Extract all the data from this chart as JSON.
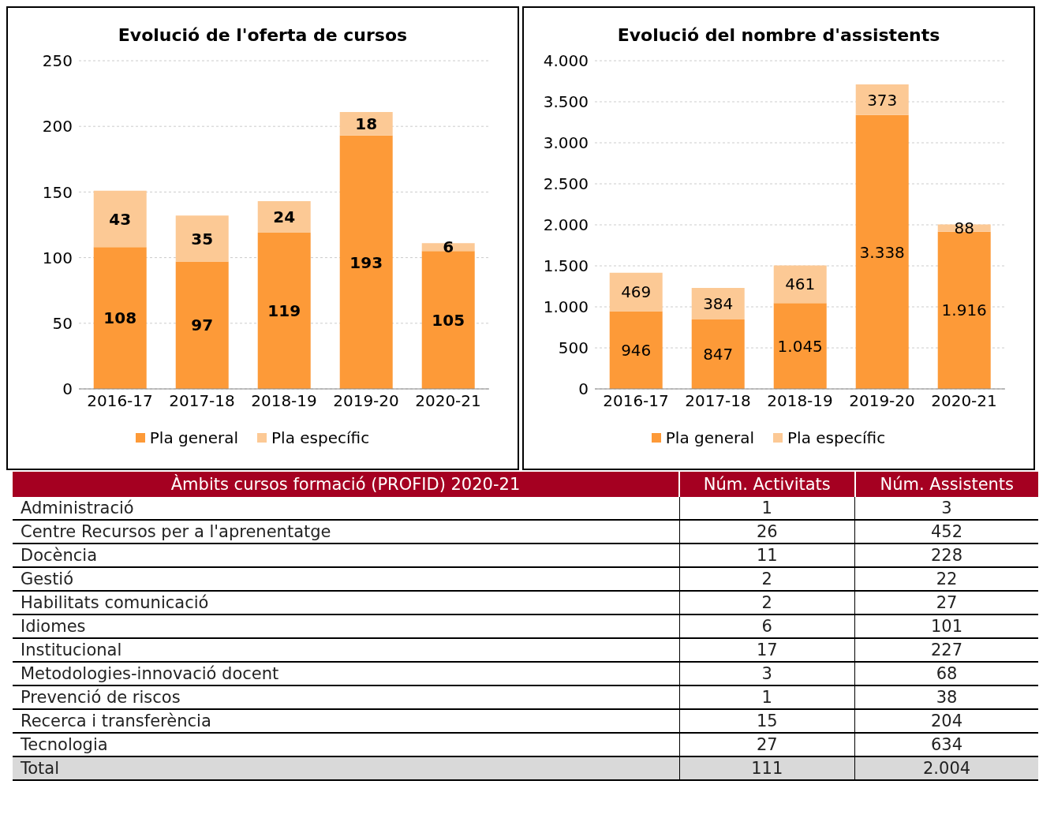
{
  "chart_data": [
    {
      "type": "bar",
      "title": "Evolució de l'oferta de cursos",
      "categories": [
        "2016-17",
        "2017-18",
        "2018-19",
        "2019-20",
        "2020-21"
      ],
      "stacked": true,
      "series": [
        {
          "name": "Pla general",
          "color": "#fd9a38",
          "values": [
            108,
            97,
            119,
            193,
            105
          ]
        },
        {
          "name": "Pla específic",
          "color": "#fcc995",
          "values": [
            43,
            35,
            24,
            18,
            6
          ]
        }
      ],
      "ylim": [
        0,
        250
      ],
      "yticks": [
        0,
        50,
        100,
        150,
        200,
        250
      ],
      "grid": "y",
      "legend": "bottom",
      "data_labels": true
    },
    {
      "type": "bar",
      "title": "Evolució del nombre d'assistents",
      "categories": [
        "2016-17",
        "2017-18",
        "2018-19",
        "2019-20",
        "2020-21"
      ],
      "stacked": true,
      "series": [
        {
          "name": "Pla general",
          "color": "#fd9a38",
          "values": [
            946,
            847,
            1045,
            3338,
            1916
          ],
          "value_labels": [
            "946",
            "847",
            "1.045",
            "3.338",
            "1.916"
          ]
        },
        {
          "name": "Pla específic",
          "color": "#fcc995",
          "values": [
            469,
            384,
            461,
            373,
            88
          ],
          "value_labels": [
            "469",
            "384",
            "461",
            "373",
            "88"
          ]
        }
      ],
      "ylim": [
        0,
        4000
      ],
      "yticks": [
        0,
        {
          "value": 500,
          "label": "500"
        },
        {
          "value": 1000,
          "label": "1.000"
        },
        {
          "value": 1500,
          "label": "1.500"
        },
        {
          "value": 2000,
          "label": "2.000"
        },
        {
          "value": 2500,
          "label": "2.500"
        },
        {
          "value": 3000,
          "label": "3.000"
        },
        {
          "value": 3500,
          "label": "3.500"
        },
        {
          "value": 4000,
          "label": "4.000"
        }
      ],
      "grid": "y",
      "legend": "bottom"
    },
    {
      "type": "other",
      "title": "Àmbits cursos formació (PROFID) 2020-21",
      "categories": [
        "Administració",
        "Centre Recursos per a l'aprenentatge",
        "Docència",
        "Gestió",
        "Habilitats comunicació",
        "Idiomes",
        "Institucional",
        "Metodologies-innovació docent",
        "Prevenció de riscos",
        "Recerca i transferència",
        "Tecnologia",
        "Total"
      ],
      "series": [
        {
          "name": "Núm. Activitats",
          "values": [
            1,
            26,
            11,
            2,
            2,
            6,
            17,
            3,
            1,
            15,
            27,
            111
          ],
          "colors": [
            "#ffffff",
            "#ffffff",
            "#ffffff",
            "#ffffff",
            "#ffffff",
            "#ffffff",
            "#ffffff",
            "#ffffff",
            "#ffffff",
            "#ffffff",
            "#ffffff",
            "#d9d9d9"
          ]
        },
        {
          "name": "Núm. Assistents",
          "values": [
            3,
            452,
            228,
            22,
            27,
            101,
            227,
            68,
            38,
            204,
            634,
            2004
          ],
          "colors": [
            "#ffffff",
            "#ffffff",
            "#ffffff",
            "#ffffff",
            "#ffffff",
            "#ffffff",
            "#ffffff",
            "#ffffff",
            "#ffffff",
            "#ffffff",
            "#ffffff",
            "#d9d9d9"
          ],
          "value_labels": [
            "3",
            "452",
            "228",
            "22",
            "27",
            "101",
            "227",
            "68",
            "38",
            "204",
            "634",
            "2.004"
          ]
        }
      ],
      "legend": "top",
      "data_labels": true
    }
  ]
}
